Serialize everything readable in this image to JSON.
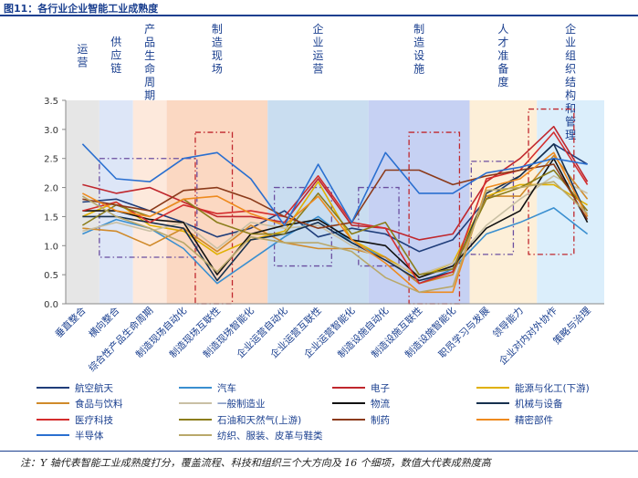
{
  "figure_title": "图11：各行业企业智能工业成熟度",
  "note": "注：Y 轴代表智能工业成熟度打分，覆盖流程、科技和组织三个大方向及 16 个细项，数值大代表成熟度高",
  "chart_data": {
    "type": "line",
    "title": "各行业企业智能工业成熟度",
    "xlabel": "",
    "ylabel": "",
    "ylim": [
      0,
      3.5
    ],
    "yticks": [
      "0.0",
      "0.5",
      "1.0",
      "1.5",
      "2.0",
      "2.5",
      "3.0",
      "3.5"
    ],
    "categories": [
      "垂直整合",
      "横向整合",
      "综合性产品生命周期",
      "制造现场自动化",
      "制造现场互联性",
      "制造现场智能化",
      "企业运营自动化",
      "企业运营互联性",
      "企业运营智能化",
      "制造设施自动化",
      "制造设施互联性",
      "制造设施智能化",
      "职员学习与发展",
      "领导能力",
      "企业对内对外协作",
      "策略与治理"
    ],
    "groups": [
      {
        "label": "运营",
        "from": 0,
        "to": 1,
        "color": "#e6e6e6"
      },
      {
        "label": "供应链",
        "from": 1,
        "to": 2,
        "color": "#dde6f7"
      },
      {
        "label": "产品生命周期",
        "from": 2,
        "to": 3,
        "color": "#fde9dc"
      },
      {
        "label": "制造现场",
        "from": 3,
        "to": 6,
        "color": "#fbd8c2"
      },
      {
        "label": "企业运营",
        "from": 6,
        "to": 9,
        "color": "#c9ddf0"
      },
      {
        "label": "制造设施",
        "from": 9,
        "to": 12,
        "color": "#c6d1f3"
      },
      {
        "label": "人才准备度",
        "from": 12,
        "to": 14,
        "color": "#fdefd8"
      },
      {
        "label": "企业组织结构和管理",
        "from": 14,
        "to": 16,
        "color": "#dbeefb"
      }
    ],
    "series": [
      {
        "name": "航空航天",
        "color": "#1f3d7a",
        "values": [
          1.75,
          1.8,
          1.6,
          1.4,
          1.15,
          1.3,
          1.6,
          1.15,
          1.3,
          1.2,
          0.9,
          1.1,
          1.8,
          2.2,
          2.75,
          2.4
        ]
      },
      {
        "name": "汽车",
        "color": "#3a8fd0",
        "values": [
          1.2,
          1.45,
          1.3,
          0.95,
          0.35,
          0.75,
          1.15,
          1.5,
          1.05,
          0.8,
          0.35,
          0.6,
          1.2,
          1.4,
          1.65,
          1.2
        ]
      },
      {
        "name": "电子",
        "color": "#c0272d",
        "values": [
          2.05,
          1.9,
          2.0,
          1.75,
          1.5,
          1.5,
          1.4,
          2.15,
          1.35,
          1.3,
          1.1,
          1.2,
          2.1,
          2.5,
          3.05,
          2.1
        ]
      },
      {
        "name": "能源与化工(下游)",
        "color": "#e0b000",
        "values": [
          1.5,
          1.75,
          1.35,
          1.25,
          0.85,
          1.1,
          1.25,
          2.1,
          1.1,
          0.8,
          0.45,
          0.7,
          1.85,
          2.05,
          2.05,
          1.7
        ]
      },
      {
        "name": "食品与饮料",
        "color": "#d08a2a",
        "values": [
          1.3,
          1.25,
          1.0,
          1.3,
          0.9,
          1.35,
          1.05,
          0.95,
          0.95,
          0.8,
          0.35,
          0.5,
          1.85,
          1.85,
          2.55,
          1.8
        ]
      },
      {
        "name": "一般制造业",
        "color": "#c9c0a4",
        "values": [
          1.25,
          1.4,
          1.25,
          1.4,
          0.95,
          1.4,
          1.3,
          1.35,
          1.0,
          0.75,
          0.5,
          0.7,
          1.35,
          1.8,
          2.2,
          1.9
        ]
      },
      {
        "name": "物流",
        "color": "#111111",
        "values": [
          1.6,
          1.6,
          1.45,
          1.4,
          0.5,
          1.2,
          1.35,
          1.45,
          1.1,
          1.0,
          0.45,
          0.65,
          1.3,
          1.6,
          2.5,
          1.4
        ]
      },
      {
        "name": "机械与设备",
        "color": "#16304e",
        "values": [
          1.5,
          1.5,
          1.4,
          1.3,
          0.4,
          1.1,
          1.2,
          1.4,
          1.05,
          0.75,
          0.4,
          0.55,
          1.9,
          2.2,
          2.75,
          1.5
        ]
      },
      {
        "name": "医疗科技",
        "color": "#d42d2d",
        "values": [
          1.6,
          1.75,
          1.4,
          1.7,
          1.55,
          1.6,
          1.5,
          2.2,
          1.4,
          1.3,
          0.35,
          0.55,
          2.15,
          2.3,
          2.95,
          2.05
        ]
      },
      {
        "name": "石油和天然气(上游)",
        "color": "#8b7d1a",
        "values": [
          1.35,
          1.7,
          1.5,
          1.8,
          1.4,
          1.2,
          1.2,
          1.9,
          1.2,
          1.4,
          0.5,
          0.6,
          1.8,
          2.0,
          2.3,
          1.6
        ]
      },
      {
        "name": "制药",
        "color": "#8b3a1a",
        "values": [
          1.8,
          1.7,
          1.6,
          1.95,
          2.0,
          1.8,
          1.5,
          1.3,
          1.4,
          2.3,
          2.3,
          2.05,
          2.2,
          2.3,
          2.4,
          1.45
        ]
      },
      {
        "name": "精密部件",
        "color": "#ee8a1e",
        "values": [
          1.9,
          1.6,
          1.5,
          1.8,
          1.85,
          1.55,
          1.35,
          1.85,
          1.1,
          0.7,
          0.2,
          0.2,
          2.0,
          2.15,
          2.6,
          1.5
        ]
      },
      {
        "name": "半导体",
        "color": "#2a6fd0",
        "values": [
          2.75,
          2.15,
          2.1,
          2.5,
          2.6,
          2.15,
          1.35,
          2.4,
          1.4,
          2.6,
          1.9,
          1.9,
          2.25,
          2.35,
          2.5,
          2.4
        ]
      },
      {
        "name": "纺织、服装、皮革与鞋类",
        "color": "#b9a86a",
        "values": [
          1.85,
          1.5,
          1.3,
          1.05,
          0.55,
          1.15,
          1.05,
          1.05,
          0.9,
          0.45,
          0.2,
          0.3,
          1.95,
          2.0,
          2.1,
          1.55
        ]
      }
    ]
  }
}
